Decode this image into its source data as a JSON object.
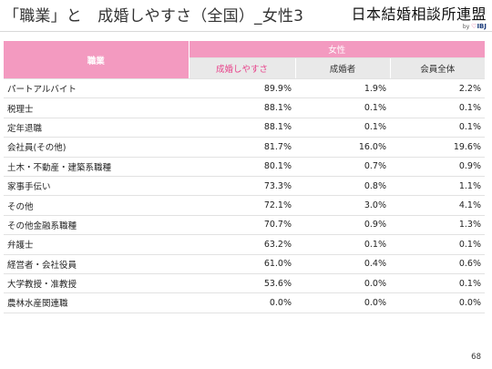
{
  "slide": {
    "title": "「職業」と　成婚しやすさ（全国）_女性3",
    "page_number": "68"
  },
  "brand": {
    "name": "日本結婚相談所連盟",
    "by": "by",
    "heart": "♡",
    "ibj": "IBJ"
  },
  "table": {
    "job_header": "職業",
    "group_header": "女性",
    "col_headers": [
      "成婚しやすさ",
      "成婚者",
      "会員全体"
    ],
    "header_bg": "#f39ac0",
    "highlight_color": "#e8428a",
    "rows": [
      {
        "job": "パートアルバイト",
        "ease": "89.9%",
        "married": "1.9%",
        "members": "2.2%"
      },
      {
        "job": "税理士",
        "ease": "88.1%",
        "married": "0.1%",
        "members": "0.1%"
      },
      {
        "job": "定年退職",
        "ease": "88.1%",
        "married": "0.1%",
        "members": "0.1%"
      },
      {
        "job": "会社員(その他)",
        "ease": "81.7%",
        "married": "16.0%",
        "members": "19.6%"
      },
      {
        "job": "土木・不動産・建築系職種",
        "ease": "80.1%",
        "married": "0.7%",
        "members": "0.9%"
      },
      {
        "job": "家事手伝い",
        "ease": "73.3%",
        "married": "0.8%",
        "members": "1.1%"
      },
      {
        "job": "その他",
        "ease": "72.1%",
        "married": "3.0%",
        "members": "4.1%"
      },
      {
        "job": "その他金融系職種",
        "ease": "70.7%",
        "married": "0.9%",
        "members": "1.3%"
      },
      {
        "job": "弁護士",
        "ease": "63.2%",
        "married": "0.1%",
        "members": "0.1%"
      },
      {
        "job": "経営者・会社役員",
        "ease": "61.0%",
        "married": "0.4%",
        "members": "0.6%"
      },
      {
        "job": "大学教授・准教授",
        "ease": "53.6%",
        "married": "0.0%",
        "members": "0.1%"
      },
      {
        "job": "農林水産関連職",
        "ease": "0.0%",
        "married": "0.0%",
        "members": "0.0%"
      }
    ]
  }
}
